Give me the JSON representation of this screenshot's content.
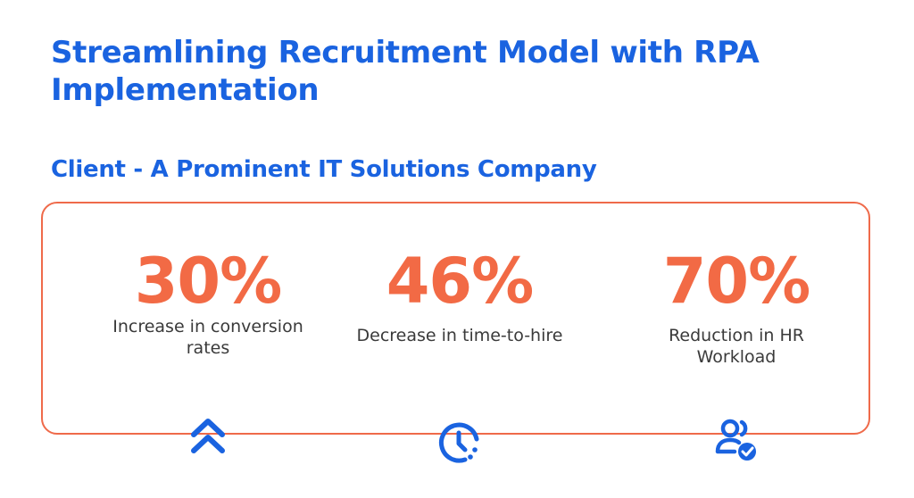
{
  "header": {
    "title": "Streamlining Recruitment Model with RPA Implementation",
    "subtitle": "Client - A Prominent IT Solutions Company"
  },
  "colors": {
    "heading": "#1a63e0",
    "accent": "#f26a45",
    "icon": "#1a63e0",
    "border": "#ef6a4a"
  },
  "stats": [
    {
      "value": "30%",
      "description": "Increase in conversion rates",
      "icon": "double-chevron-up-icon"
    },
    {
      "value": "46%",
      "description": "Decrease in time-to-hire",
      "icon": "clock-icon"
    },
    {
      "value": "70%",
      "description": "Reduction in HR Workload",
      "icon": "users-check-icon"
    }
  ]
}
